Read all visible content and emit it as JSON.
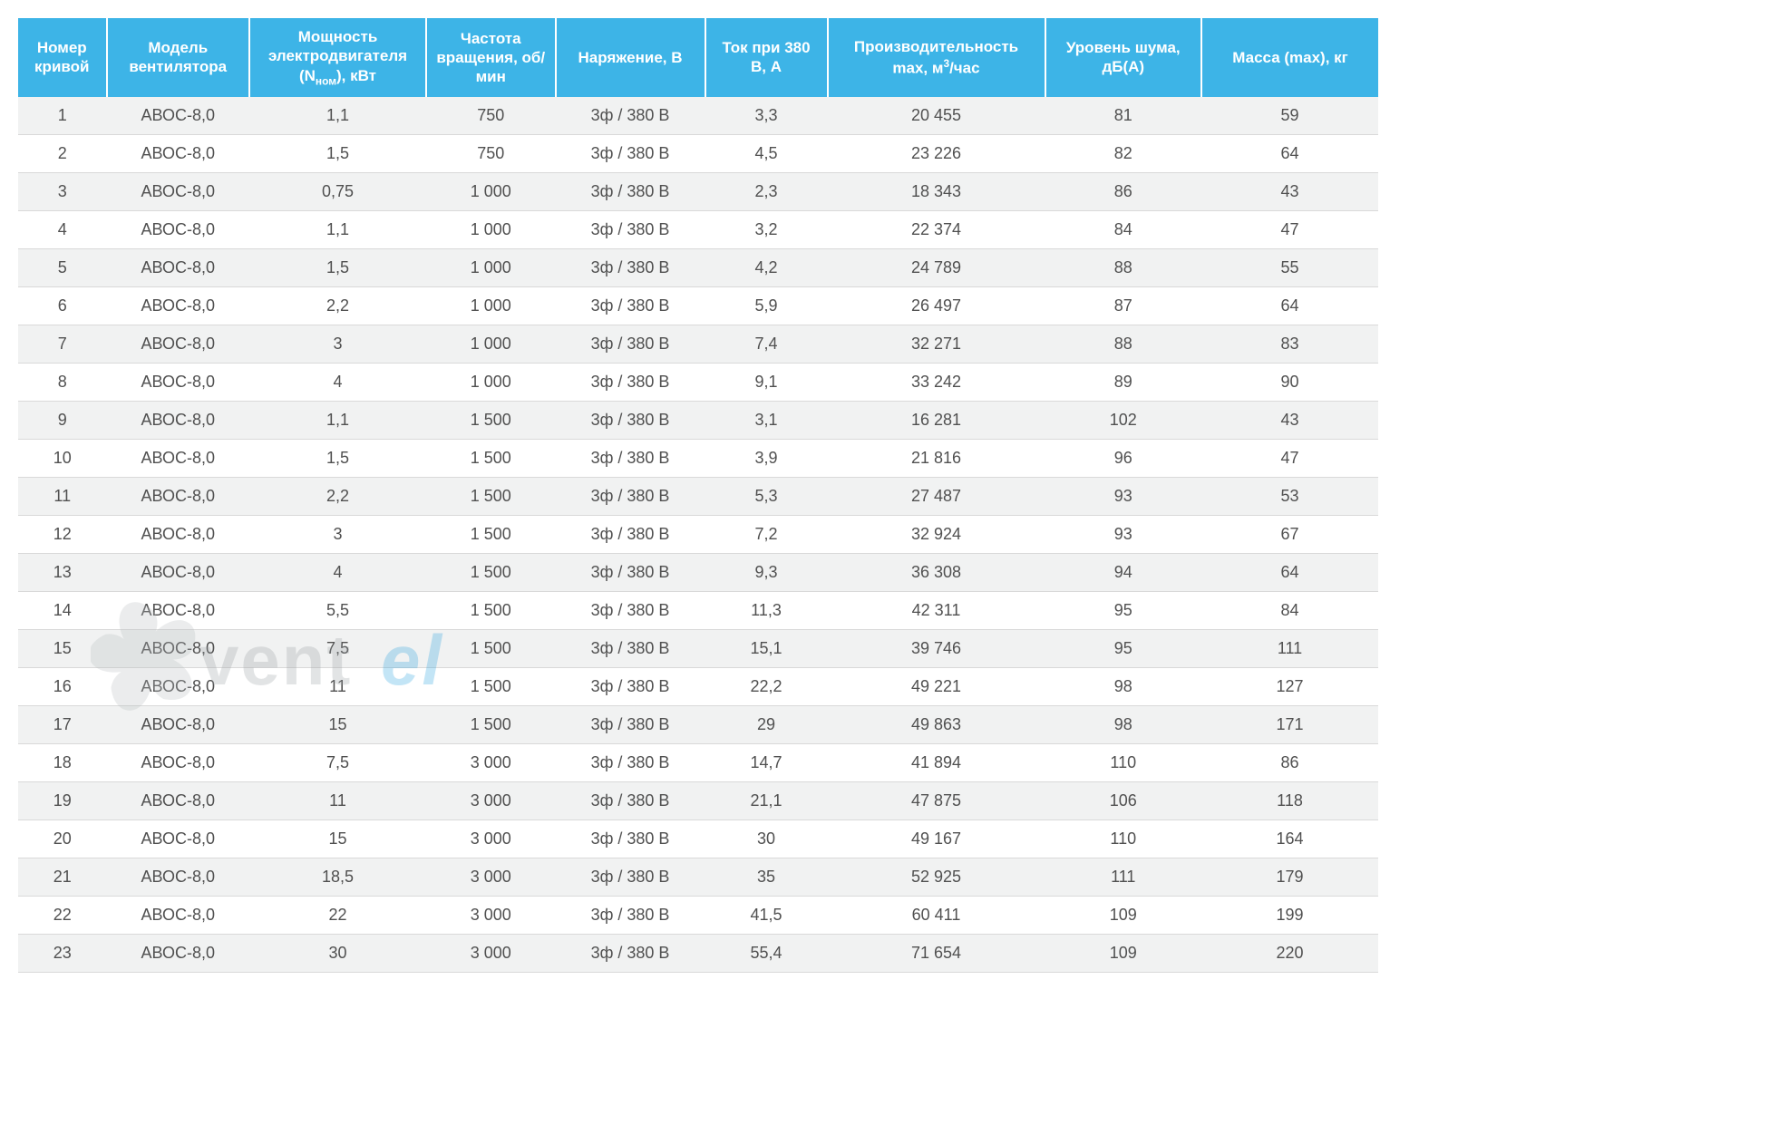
{
  "table": {
    "header_bg": "#3db4e7",
    "header_fg": "#ffffff",
    "row_odd_bg": "#f1f2f2",
    "row_even_bg": "#ffffff",
    "border_color": "#d9d9d9",
    "text_color": "#505050",
    "header_fontsize": 17,
    "body_fontsize": 18,
    "col_widths_pct": [
      6.5,
      10.5,
      13,
      9.5,
      11,
      9,
      16,
      11.5,
      13
    ],
    "columns": [
      "Номер кривой",
      "Модель вентилятора",
      "Мощность электродвигателя (Nном), кВт",
      "Частота вращения, об/мин",
      "Наряжение, В",
      "Ток при 380 В, А",
      "Производительность max, м³/час",
      "Уровень шума, дБ(А)",
      "Масса (max), кг"
    ],
    "rows": [
      [
        "1",
        "АВОС-8,0",
        "1,1",
        "750",
        "3ф / 380 В",
        "3,3",
        "20 455",
        "81",
        "59"
      ],
      [
        "2",
        "АВОС-8,0",
        "1,5",
        "750",
        "3ф / 380 В",
        "4,5",
        "23 226",
        "82",
        "64"
      ],
      [
        "3",
        "АВОС-8,0",
        "0,75",
        "1 000",
        "3ф / 380 В",
        "2,3",
        "18 343",
        "86",
        "43"
      ],
      [
        "4",
        "АВОС-8,0",
        "1,1",
        "1 000",
        "3ф / 380 В",
        "3,2",
        "22 374",
        "84",
        "47"
      ],
      [
        "5",
        "АВОС-8,0",
        "1,5",
        "1 000",
        "3ф / 380 В",
        "4,2",
        "24 789",
        "88",
        "55"
      ],
      [
        "6",
        "АВОС-8,0",
        "2,2",
        "1 000",
        "3ф / 380 В",
        "5,9",
        "26 497",
        "87",
        "64"
      ],
      [
        "7",
        "АВОС-8,0",
        "3",
        "1 000",
        "3ф / 380 В",
        "7,4",
        "32 271",
        "88",
        "83"
      ],
      [
        "8",
        "АВОС-8,0",
        "4",
        "1 000",
        "3ф / 380 В",
        "9,1",
        "33 242",
        "89",
        "90"
      ],
      [
        "9",
        "АВОС-8,0",
        "1,1",
        "1 500",
        "3ф / 380 В",
        "3,1",
        "16 281",
        "102",
        "43"
      ],
      [
        "10",
        "АВОС-8,0",
        "1,5",
        "1 500",
        "3ф / 380 В",
        "3,9",
        "21 816",
        "96",
        "47"
      ],
      [
        "11",
        "АВОС-8,0",
        "2,2",
        "1 500",
        "3ф / 380 В",
        "5,3",
        "27 487",
        "93",
        "53"
      ],
      [
        "12",
        "АВОС-8,0",
        "3",
        "1 500",
        "3ф / 380 В",
        "7,2",
        "32 924",
        "93",
        "67"
      ],
      [
        "13",
        "АВОС-8,0",
        "4",
        "1 500",
        "3ф / 380 В",
        "9,3",
        "36 308",
        "94",
        "64"
      ],
      [
        "14",
        "АВОС-8,0",
        "5,5",
        "1 500",
        "3ф / 380 В",
        "11,3",
        "42 311",
        "95",
        "84"
      ],
      [
        "15",
        "АВОС-8,0",
        "7,5",
        "1 500",
        "3ф / 380 В",
        "15,1",
        "39 746",
        "95",
        "111"
      ],
      [
        "16",
        "АВОС-8,0",
        "11",
        "1 500",
        "3ф / 380 В",
        "22,2",
        "49 221",
        "98",
        "127"
      ],
      [
        "17",
        "АВОС-8,0",
        "15",
        "1 500",
        "3ф / 380 В",
        "29",
        "49 863",
        "98",
        "171"
      ],
      [
        "18",
        "АВОС-8,0",
        "7,5",
        "3 000",
        "3ф / 380 В",
        "14,7",
        "41 894",
        "110",
        "86"
      ],
      [
        "19",
        "АВОС-8,0",
        "11",
        "3 000",
        "3ф / 380 В",
        "21,1",
        "47 875",
        "106",
        "118"
      ],
      [
        "20",
        "АВОС-8,0",
        "15",
        "3 000",
        "3ф / 380 В",
        "30",
        "49 167",
        "110",
        "164"
      ],
      [
        "21",
        "АВОС-8,0",
        "18,5",
        "3 000",
        "3ф / 380 В",
        "35",
        "52 925",
        "111",
        "179"
      ],
      [
        "22",
        "АВОС-8,0",
        "22",
        "3 000",
        "3ф / 380 В",
        "41,5",
        "60 411",
        "109",
        "199"
      ],
      [
        "23",
        "АВОС-8,0",
        "30",
        "3 000",
        "3ф / 380 В",
        "55,4",
        "71 654",
        "109",
        "220"
      ]
    ]
  },
  "watermark": {
    "text_main": "vent",
    "text_accent": "el",
    "fan_color": "#b8bec0",
    "main_color": "#9aa0a3",
    "accent_color": "#2aa3df",
    "opacity": 0.28
  }
}
